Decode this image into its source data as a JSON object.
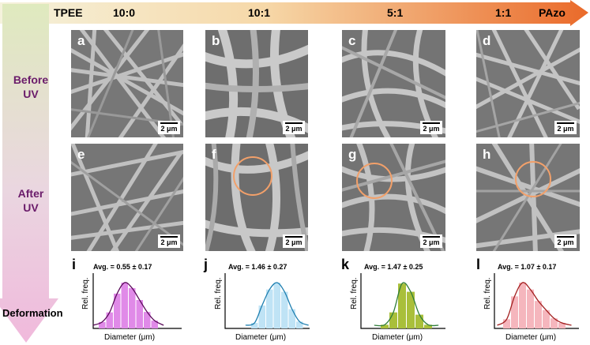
{
  "header": {
    "left_label": "TPEE",
    "right_label": "PAzo",
    "ratios": [
      "10:0",
      "10:1",
      "5:1",
      "1:1"
    ]
  },
  "row_labels": {
    "before": [
      "Before",
      "UV"
    ],
    "after": [
      "After",
      "UV"
    ],
    "deformation": "Deformation"
  },
  "panels_before": [
    {
      "letter": "a",
      "scale": "2 μm"
    },
    {
      "letter": "b",
      "scale": "2 μm"
    },
    {
      "letter": "c",
      "scale": "2 μm"
    },
    {
      "letter": "d",
      "scale": "2 μm"
    }
  ],
  "panels_after": [
    {
      "letter": "e",
      "scale": "2 μm"
    },
    {
      "letter": "f",
      "scale": "2 μm"
    },
    {
      "letter": "g",
      "scale": "2 μm"
    },
    {
      "letter": "h",
      "scale": "2 μm"
    }
  ],
  "chart_data": [
    {
      "type": "bar",
      "letter": "i",
      "title": "Avg. = 0.55 ± 0.17",
      "xlabel": "Diameter (μm)",
      "ylabel": "Rel. freq.",
      "values": [
        0.14,
        0.35,
        0.76,
        1.0,
        0.88,
        0.62,
        0.36,
        0.17
      ],
      "color": "#e08ae8",
      "curve": "#5a0a5a"
    },
    {
      "type": "bar",
      "letter": "j",
      "title": "Avg. = 1.46 ± 0.27",
      "xlabel": "Diameter (μm)",
      "ylabel": "Rel. freq.",
      "values": [
        0.12,
        0.5,
        0.85,
        1.0,
        0.8,
        0.42,
        0.15
      ],
      "color": "#bfe3f5",
      "curve": "#1e7fb0"
    },
    {
      "type": "bar",
      "letter": "k",
      "title": "Avg. = 1.47 ± 0.25",
      "xlabel": "Diameter (μm)",
      "ylabel": "Rel. freq.",
      "values": [
        0.08,
        0.35,
        0.98,
        0.8,
        0.3,
        0.08
      ],
      "color": "#a9bf3a",
      "curve": "#2f7d3a"
    },
    {
      "type": "bar",
      "letter": "l",
      "title": "Avg. = 1.07 ± 0.17",
      "xlabel": "Diameter (μm)",
      "ylabel": "Rel. freq.",
      "values": [
        0.2,
        0.7,
        1.0,
        0.85,
        0.6,
        0.4,
        0.22,
        0.12
      ],
      "color": "#f5b6bd",
      "curve": "#a32020"
    }
  ]
}
